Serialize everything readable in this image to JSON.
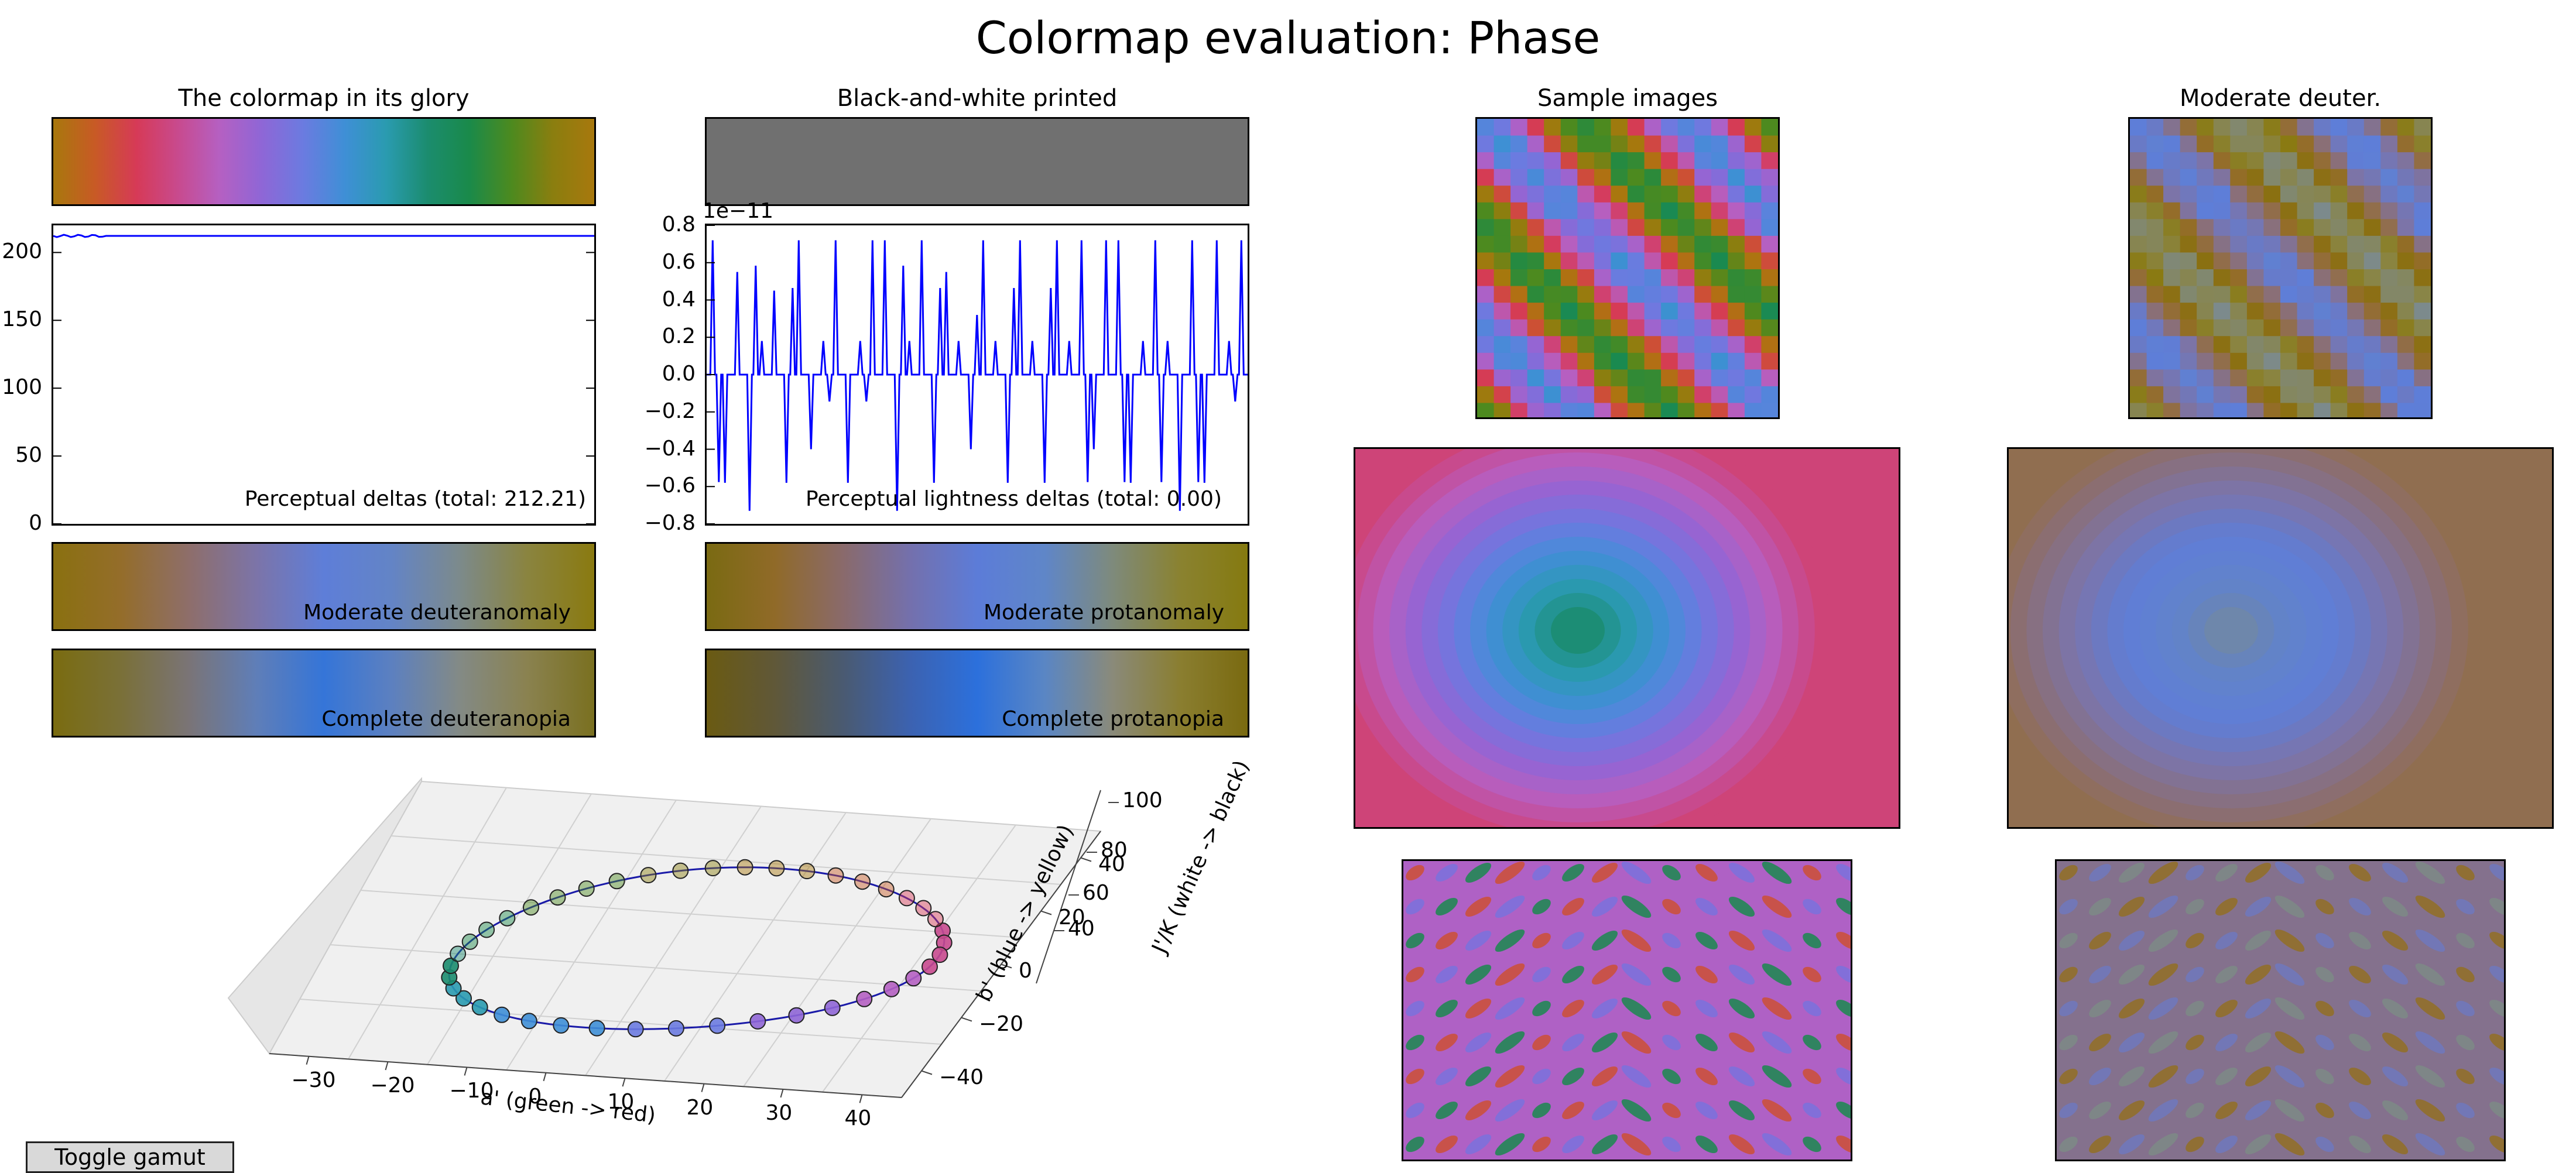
{
  "figure": {
    "title": "Colormap evaluation: Phase"
  },
  "panels": {
    "glory": {
      "title": "The colormap in its glory"
    },
    "bw": {
      "title": "Black-and-white printed"
    },
    "samples": {
      "title": "Sample images"
    },
    "deuter": {
      "title": "Moderate deuter."
    }
  },
  "gradients": {
    "moderate_deuteranomaly": "Moderate deuteranomaly",
    "moderate_protanomaly": "Moderate protanomaly",
    "complete_deuteranopia": "Complete deuteranopia",
    "complete_protanopia": "Complete protanopia"
  },
  "colors": {
    "phase": [
      "#a8780d",
      "#c85a25",
      "#d63a57",
      "#c84a8e",
      "#b560c2",
      "#8f66d6",
      "#6b7be0",
      "#3f8fd6",
      "#2a9bb0",
      "#1b8c6e",
      "#1a8a4a",
      "#4c8a1f",
      "#8a7e0f",
      "#a8780d"
    ],
    "bw": "#707070",
    "mod_deuter": [
      "#8a7010",
      "#946d2a",
      "#8e6e6a",
      "#7c74a8",
      "#5e7ed8",
      "#6384c6",
      "#7c8a8c",
      "#8a8440",
      "#8a7a10"
    ],
    "mod_prot": [
      "#7a6a12",
      "#906a28",
      "#8a6a6a",
      "#7470ac",
      "#5c7cd8",
      "#5f86c8",
      "#7e8a7c",
      "#8a8230",
      "#857a10"
    ],
    "comp_deuter": [
      "#7a6c10",
      "#7a7038",
      "#7a7476",
      "#5f7eb8",
      "#3575d8",
      "#5c80c0",
      "#838a86",
      "#8a8250",
      "#7a7020"
    ],
    "comp_prot": [
      "#6a5a12",
      "#605838",
      "#4a5a70",
      "#3c62b0",
      "#2c70dc",
      "#5a86c4",
      "#8a8a7a",
      "#8a7e30",
      "#7a6a10"
    ],
    "line": "#0000ff"
  },
  "toggle_button": {
    "label": "Toggle gamut"
  },
  "chart_data": [
    {
      "type": "line",
      "title": "Perceptual deltas (total: 212.21)",
      "ylim": [
        0,
        220
      ],
      "yticks": [
        "200",
        "150",
        "100",
        "50",
        "0"
      ],
      "y_values_approx": 212.21
    },
    {
      "type": "line",
      "title": "Perceptual lightness deltas (total: 0.00)",
      "scale_label": "1e−11",
      "ylim": [
        -0.8,
        0.8
      ],
      "yticks": [
        "0.8",
        "0.6",
        "0.4",
        "0.2",
        "0.0",
        "−0.2",
        "−0.4",
        "−0.6",
        "−0.8"
      ],
      "spike_values": [
        0.72,
        -0.58,
        0.55,
        -0.73,
        0.18,
        0.45,
        -0.58,
        0.72,
        -0.4,
        0.18,
        0.72,
        -0.58,
        0.18,
        0.72,
        0.72,
        -0.73,
        0.18,
        0.72,
        -0.58,
        0.55,
        0.18,
        -0.4,
        0.72,
        0.18,
        -0.58,
        0.72,
        0.18,
        -0.58,
        0.72,
        0.18,
        0.72,
        -0.4,
        0.72,
        0.72,
        -0.58,
        0.18,
        0.72,
        0.18,
        -0.73,
        0.72,
        -0.58,
        0.72,
        0.18,
        0.72
      ]
    },
    {
      "type": "scatter",
      "dimension": "3d",
      "xlabel": "a' (green -> red)",
      "ylabel": "b' (blue -> yellow)",
      "zlabel": "J'/K (white -> black)",
      "xticks": [
        "−30",
        "−20",
        "−10",
        "0",
        "10",
        "20",
        "30",
        "40"
      ],
      "yticks": [
        "−40",
        "−20",
        "0",
        "20",
        "40"
      ],
      "zticks": [
        "40",
        "60",
        "80",
        "100"
      ]
    }
  ]
}
